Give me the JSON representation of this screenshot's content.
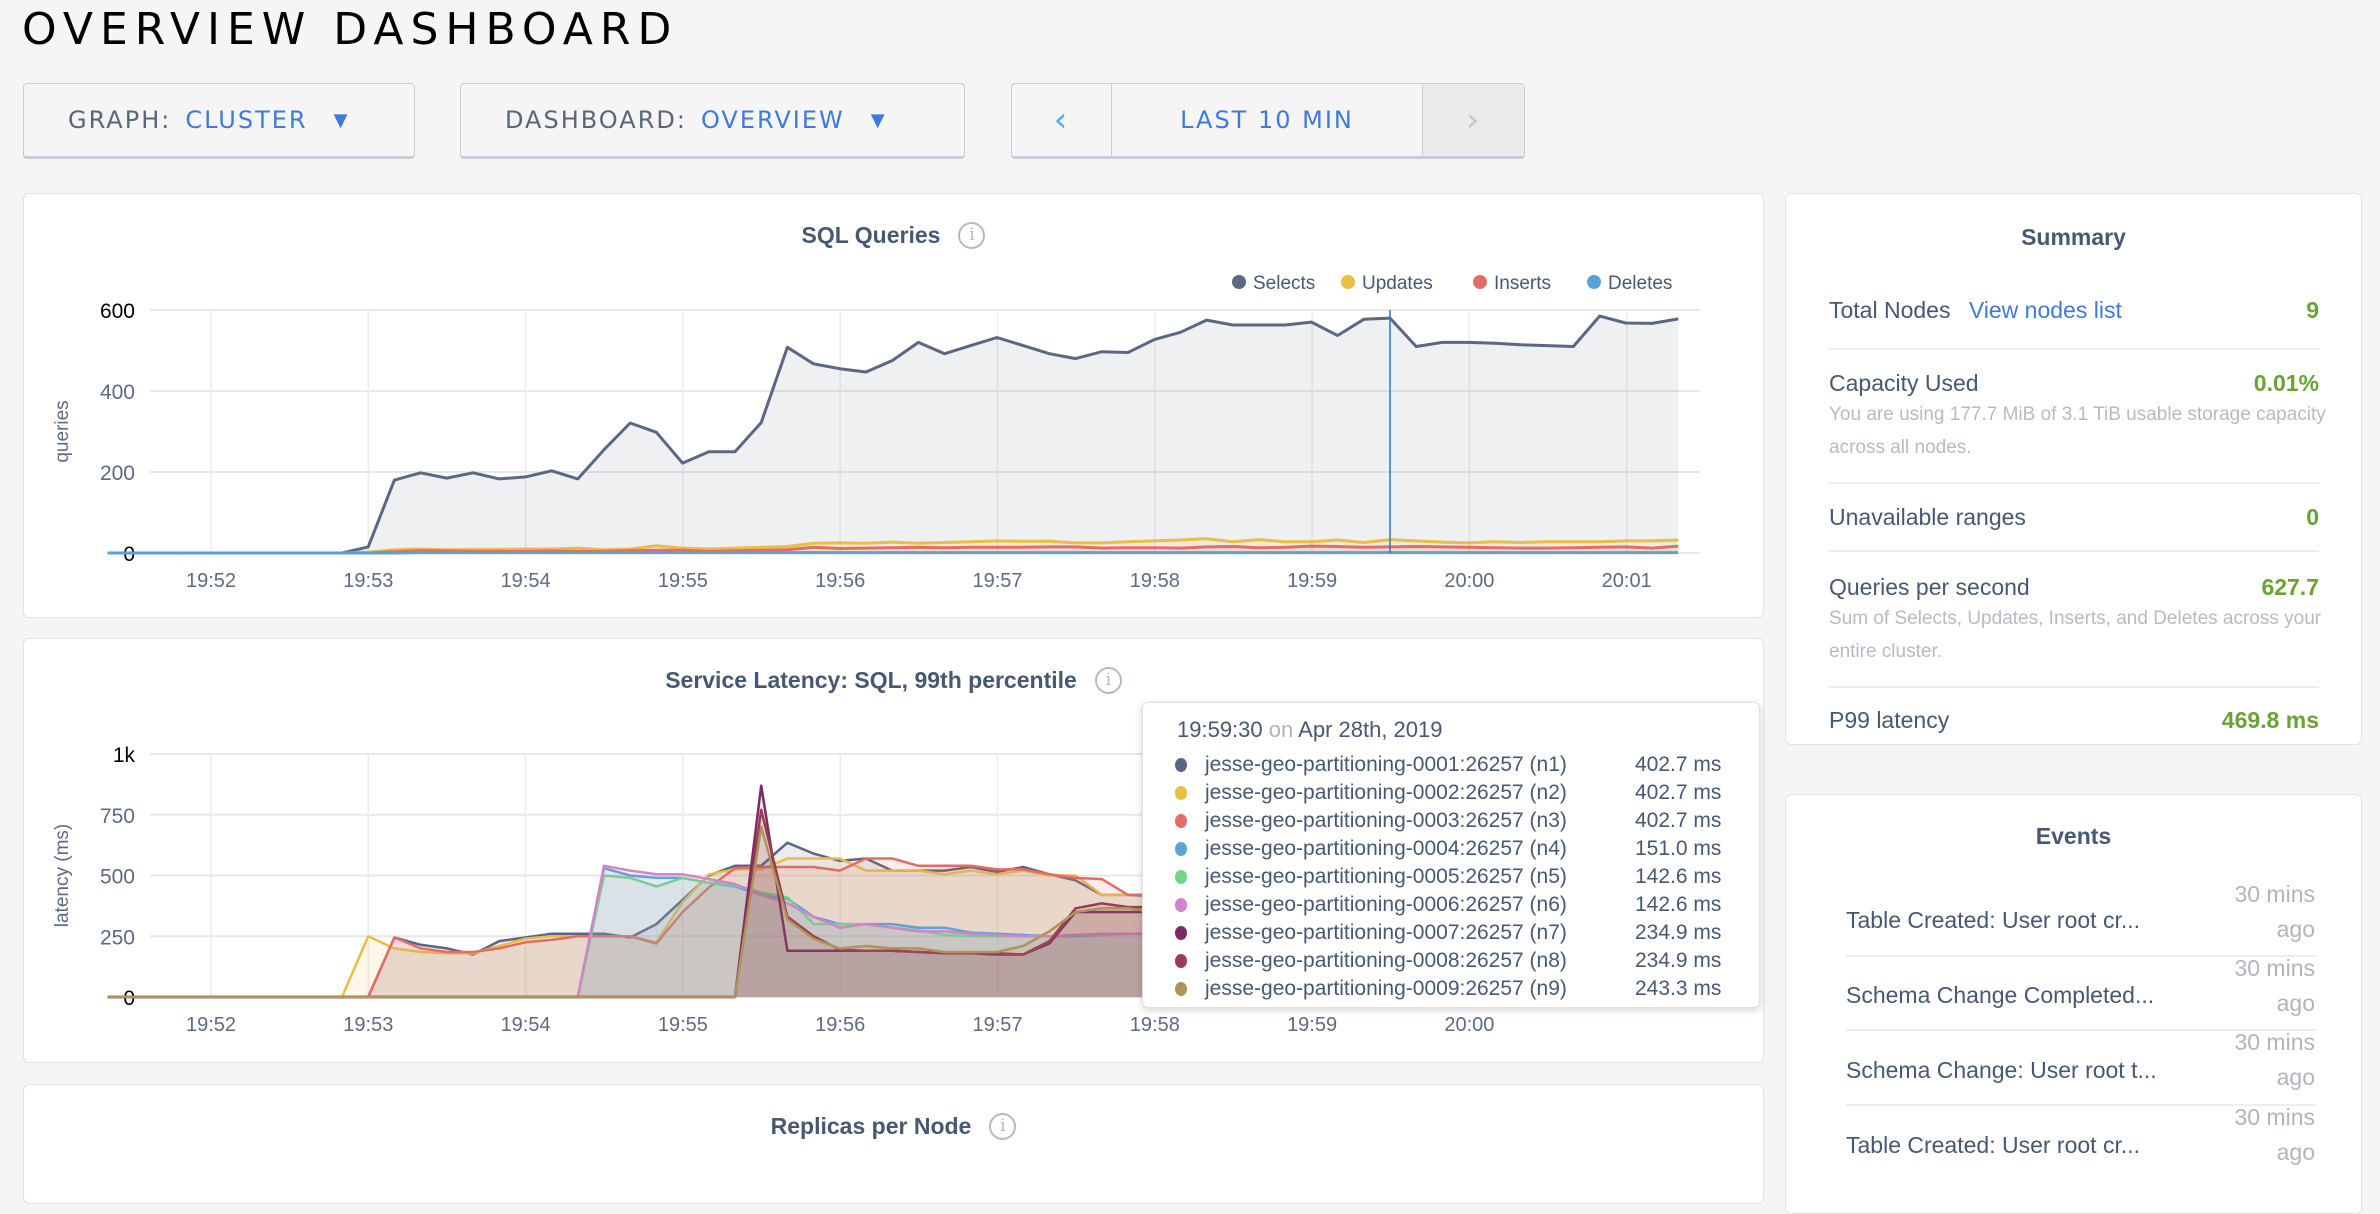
{
  "page_title": "OVERVIEW DASHBOARD",
  "controls": {
    "graph_label": "GRAPH:",
    "graph_value": "CLUSTER",
    "dashboard_label": "DASHBOARD:",
    "dashboard_value": "OVERVIEW",
    "time_prev": "‹",
    "time_range": "LAST 10 MIN",
    "time_next": "›",
    "caret": "▼"
  },
  "info_icon": "i",
  "summary": {
    "title": "Summary",
    "total_nodes_label": "Total Nodes",
    "view_nodes_link": "View nodes list",
    "total_nodes_value": "9",
    "capacity_label": "Capacity Used",
    "capacity_value": "0.01%",
    "capacity_desc": "You are using 177.7 MiB of 3.1 TiB usable storage capacity across all nodes.",
    "unavailable_label": "Unavailable ranges",
    "unavailable_value": "0",
    "qps_label": "Queries per second",
    "qps_value": "627.7",
    "qps_desc": "Sum of Selects, Updates, Inserts, and Deletes across your entire cluster.",
    "p99_label": "P99 latency",
    "p99_value": "469.8 ms",
    "value_color": "#6aa233"
  },
  "events": {
    "title": "Events",
    "items": [
      {
        "text": "Table Created: User root cr...",
        "time": "30 mins ago"
      },
      {
        "text": "Schema Change Completed...",
        "time": "30 mins ago"
      },
      {
        "text": "Schema Change: User root t...",
        "time": "30 mins ago"
      },
      {
        "text": "Table Created: User root cr...",
        "time": "30 mins ago"
      }
    ]
  },
  "tooltip": {
    "time": "19:59:30",
    "on": "on",
    "date": "Apr 28th, 2019",
    "rows": [
      {
        "name": "jesse-geo-partitioning-0001:26257 (n1)",
        "value": "402.7 ms",
        "color": "#5b6584"
      },
      {
        "name": "jesse-geo-partitioning-0002:26257 (n2)",
        "value": "402.7 ms",
        "color": "#e9be45"
      },
      {
        "name": "jesse-geo-partitioning-0003:26257 (n3)",
        "value": "402.7 ms",
        "color": "#e56b65"
      },
      {
        "name": "jesse-geo-partitioning-0004:26257 (n4)",
        "value": "151.0 ms",
        "color": "#5ba4d8"
      },
      {
        "name": "jesse-geo-partitioning-0005:26257 (n5)",
        "value": "142.6 ms",
        "color": "#6fd58b"
      },
      {
        "name": "jesse-geo-partitioning-0006:26257 (n6)",
        "value": "142.6 ms",
        "color": "#d383c9"
      },
      {
        "name": "jesse-geo-partitioning-0007:26257 (n7)",
        "value": "234.9 ms",
        "color": "#7b2a67"
      },
      {
        "name": "jesse-geo-partitioning-0008:26257 (n8)",
        "value": "234.9 ms",
        "color": "#9a3c52"
      },
      {
        "name": "jesse-geo-partitioning-0009:26257 (n9)",
        "value": "243.3 ms",
        "color": "#ad9458"
      }
    ]
  },
  "chart_data": [
    {
      "type": "area",
      "title": "SQL Queries",
      "ylabel": "queries",
      "ylim": [
        0,
        600
      ],
      "yticks": [
        "0",
        "200",
        "400",
        "600"
      ],
      "xticks": [
        "19:52",
        "19:53",
        "19:54",
        "19:55",
        "19:56",
        "19:57",
        "19:58",
        "19:59",
        "20:00",
        "20:01"
      ],
      "grid": true,
      "legend": "top-right",
      "hover_time": "19:59:30",
      "x": [
        "19:51:40",
        "19:51:50",
        "19:52:00",
        "19:52:10",
        "19:52:20",
        "19:52:30",
        "19:52:40",
        "19:52:50",
        "19:53:00",
        "19:53:10",
        "19:53:20",
        "19:53:30",
        "19:53:40",
        "19:53:50",
        "19:54:00",
        "19:54:10",
        "19:54:20",
        "19:54:30",
        "19:54:40",
        "19:54:50",
        "19:55:00",
        "19:55:10",
        "19:55:20",
        "19:55:30",
        "19:55:40",
        "19:55:50",
        "19:56:00",
        "19:56:10",
        "19:56:20",
        "19:56:30",
        "19:56:40",
        "19:56:50",
        "19:57:00",
        "19:57:10",
        "19:57:20",
        "19:57:30",
        "19:57:40",
        "19:57:50",
        "19:58:00",
        "19:58:10",
        "19:58:20",
        "19:58:30",
        "19:58:40",
        "19:58:50",
        "19:59:00",
        "19:59:10",
        "19:59:20",
        "19:59:30",
        "19:59:40",
        "19:59:50",
        "20:00:00",
        "20:00:10",
        "20:00:20",
        "20:00:30",
        "20:00:40",
        "20:00:50",
        "20:01:00",
        "20:01:10",
        "20:01:20"
      ],
      "series": [
        {
          "name": "Selects",
          "color": "#5c6784",
          "values": [
            0,
            0,
            0,
            0,
            0,
            0,
            0,
            0,
            15,
            180,
            198,
            185,
            198,
            183,
            188,
            203,
            183,
            255,
            321,
            298,
            222,
            250,
            250,
            322,
            508,
            467,
            455,
            447,
            475,
            520,
            492,
            512,
            532,
            512,
            492,
            480,
            497,
            495,
            527,
            545,
            575,
            563,
            563,
            563,
            570,
            537,
            577,
            580,
            510,
            520,
            520,
            518,
            514,
            512,
            510,
            585,
            568,
            567,
            578
          ]
        },
        {
          "name": "Updates",
          "color": "#e9be45",
          "values": [
            0,
            0,
            0,
            0,
            0,
            0,
            0,
            0,
            2,
            8,
            10,
            8,
            9,
            9,
            10,
            10,
            12,
            8,
            10,
            18,
            12,
            10,
            12,
            14,
            16,
            24,
            25,
            24,
            27,
            24,
            26,
            28,
            30,
            29,
            29,
            25,
            25,
            28,
            30,
            32,
            35,
            28,
            33,
            28,
            28,
            32,
            26,
            33,
            30,
            27,
            25,
            28,
            26,
            28,
            28,
            28,
            30,
            30,
            32
          ]
        },
        {
          "name": "Inserts",
          "color": "#e46d65",
          "values": [
            0,
            0,
            0,
            0,
            0,
            0,
            0,
            0,
            0,
            3,
            6,
            5,
            4,
            4,
            4,
            5,
            4,
            4,
            6,
            7,
            7,
            4,
            6,
            7,
            8,
            14,
            11,
            12,
            13,
            14,
            13,
            14,
            14,
            14,
            15,
            15,
            12,
            13,
            13,
            12,
            15,
            16,
            13,
            14,
            17,
            16,
            14,
            15,
            16,
            15,
            14,
            13,
            12,
            12,
            13,
            14,
            15,
            12,
            17
          ]
        },
        {
          "name": "Deletes",
          "color": "#5aa2d6",
          "values": [
            0,
            0,
            0,
            0,
            0,
            0,
            0,
            0,
            0,
            0,
            1,
            1,
            1,
            1,
            1,
            1,
            1,
            1,
            1,
            1,
            1,
            1,
            1,
            1,
            1,
            1,
            1,
            1,
            1,
            1,
            1,
            1,
            1,
            1,
            1,
            1,
            1,
            1,
            1,
            1,
            1,
            1,
            1,
            1,
            1,
            1,
            1,
            1,
            1,
            1,
            1,
            1,
            1,
            1,
            1,
            1,
            1,
            1,
            1
          ]
        }
      ]
    },
    {
      "type": "area",
      "title": "Service Latency: SQL, 99th percentile",
      "ylabel": "latency (ms)",
      "ylim": [
        0,
        1000
      ],
      "yticks": [
        "0",
        "250",
        "500",
        "750",
        "1k"
      ],
      "xticks": [
        "19:52",
        "19:53",
        "19:54",
        "19:55",
        "19:56",
        "19:57",
        "19:58",
        "19:59",
        "20:00"
      ],
      "grid": true,
      "hover_time": "19:59:30",
      "series": [
        {
          "name": "n1",
          "color": "#5b6584",
          "values": [
            0,
            0,
            0,
            0,
            0,
            0,
            0,
            0,
            0,
            245,
            215,
            200,
            175,
            230,
            245,
            260,
            260,
            260,
            245,
            300,
            400,
            500,
            540,
            540,
            635,
            590,
            560,
            570,
            520,
            520,
            520,
            535,
            515,
            535,
            505,
            480,
            420,
            420,
            415,
            405,
            405,
            405,
            405,
            405,
            400,
            410,
            410,
            402.7,
            400,
            405,
            410
          ]
        },
        {
          "name": "n2",
          "color": "#e9be45",
          "values": [
            0,
            0,
            0,
            0,
            0,
            0,
            0,
            0,
            250,
            200,
            185,
            180,
            180,
            210,
            240,
            250,
            250,
            250,
            250,
            225,
            390,
            505,
            525,
            525,
            570,
            570,
            570,
            520,
            520,
            520,
            505,
            520,
            505,
            520,
            500,
            500,
            420,
            420,
            420,
            420,
            420,
            420,
            435,
            435,
            435,
            435,
            415,
            402.7,
            415,
            420,
            440
          ]
        },
        {
          "name": "n3",
          "color": "#e56b65",
          "values": [
            0,
            0,
            0,
            0,
            0,
            0,
            0,
            0,
            0,
            245,
            200,
            185,
            185,
            200,
            225,
            235,
            250,
            250,
            250,
            220,
            350,
            450,
            530,
            535,
            535,
            535,
            520,
            570,
            570,
            540,
            540,
            540,
            525,
            525,
            505,
            490,
            485,
            420,
            420,
            410,
            410,
            410,
            410,
            410,
            420,
            420,
            420,
            402.7,
            403,
            403,
            403
          ]
        },
        {
          "name": "n4",
          "color": "#5ba4d8",
          "values": [
            0,
            0,
            0,
            0,
            0,
            0,
            0,
            0,
            0,
            0,
            0,
            0,
            0,
            0,
            0,
            0,
            0,
            530,
            500,
            490,
            490,
            470,
            455,
            420,
            405,
            330,
            300,
            300,
            300,
            285,
            285,
            265,
            260,
            255,
            250,
            250,
            255,
            260,
            260,
            250,
            170,
            165,
            160,
            160,
            160,
            160,
            150,
            151,
            170,
            220,
            230
          ]
        },
        {
          "name": "n5",
          "color": "#6fd58b",
          "values": [
            0,
            0,
            0,
            0,
            0,
            0,
            0,
            0,
            0,
            0,
            0,
            0,
            0,
            0,
            0,
            0,
            0,
            500,
            490,
            455,
            490,
            470,
            460,
            430,
            410,
            300,
            300,
            300,
            285,
            275,
            255,
            250,
            250,
            250,
            250,
            255,
            255,
            260,
            260,
            250,
            170,
            160,
            155,
            155,
            150,
            145,
            140,
            142.6,
            150,
            215,
            220
          ]
        },
        {
          "name": "n6",
          "color": "#d383c9",
          "values": [
            0,
            0,
            0,
            0,
            0,
            0,
            0,
            0,
            0,
            0,
            0,
            0,
            0,
            0,
            0,
            0,
            0,
            540,
            520,
            505,
            505,
            485,
            465,
            420,
            385,
            330,
            285,
            300,
            285,
            270,
            270,
            260,
            255,
            250,
            250,
            255,
            260,
            260,
            260,
            250,
            175,
            170,
            165,
            165,
            165,
            145,
            140,
            142.6,
            150,
            220,
            225
          ]
        },
        {
          "name": "n7",
          "color": "#7b2a67",
          "values": [
            0,
            0,
            0,
            0,
            0,
            0,
            0,
            0,
            0,
            0,
            0,
            0,
            0,
            0,
            0,
            0,
            0,
            0,
            0,
            0,
            0,
            0,
            0,
            870,
            190,
            190,
            190,
            190,
            190,
            185,
            180,
            180,
            175,
            175,
            220,
            350,
            350,
            350,
            350,
            320,
            235,
            230,
            235,
            235,
            230,
            230,
            230,
            234.9,
            235,
            240,
            255
          ]
        },
        {
          "name": "n8",
          "color": "#9a3c52",
          "values": [
            0,
            0,
            0,
            0,
            0,
            0,
            0,
            0,
            0,
            0,
            0,
            0,
            0,
            0,
            0,
            0,
            0,
            0,
            0,
            0,
            0,
            0,
            0,
            770,
            330,
            250,
            195,
            190,
            190,
            185,
            180,
            180,
            180,
            175,
            230,
            365,
            385,
            370,
            370,
            330,
            245,
            235,
            235,
            235,
            235,
            235,
            235,
            234.9,
            240,
            245,
            255
          ]
        },
        {
          "name": "n9",
          "color": "#ad9458",
          "values": [
            0,
            0,
            0,
            0,
            0,
            0,
            0,
            0,
            0,
            0,
            0,
            0,
            0,
            0,
            0,
            0,
            0,
            0,
            0,
            0,
            0,
            0,
            0,
            700,
            320,
            240,
            200,
            210,
            200,
            200,
            185,
            185,
            185,
            210,
            270,
            350,
            365,
            365,
            350,
            320,
            235,
            235,
            230,
            230,
            230,
            230,
            235,
            243.3,
            245,
            245,
            260
          ]
        }
      ]
    },
    {
      "type": "bar",
      "title": "Replicas per Node"
    }
  ]
}
